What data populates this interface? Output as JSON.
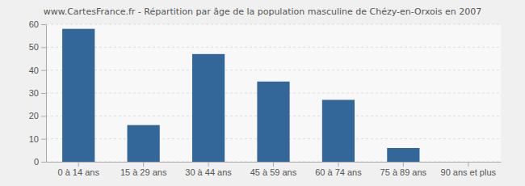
{
  "chart_data": {
    "type": "bar",
    "title": "www.CartesFrance.fr - Répartition par âge de la population masculine de Chézy-en-Orxois en 2007",
    "categories": [
      "0 à 14 ans",
      "15 à 29 ans",
      "30 à 44 ans",
      "45 à 59 ans",
      "60 à 74 ans",
      "75 à 89 ans",
      "90 ans et plus"
    ],
    "values": [
      58,
      16,
      47,
      35,
      27,
      6,
      0
    ],
    "color": "#336699",
    "ylim": [
      0,
      60
    ],
    "yticks": [
      0,
      10,
      20,
      30,
      40,
      50,
      60
    ],
    "grid": true
  }
}
